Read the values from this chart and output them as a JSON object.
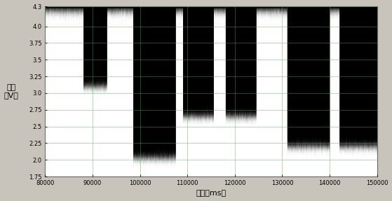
{
  "title": "",
  "xlabel": "时间（ms）",
  "ylabel": "幅值\n（V）",
  "xlim": [
    80000,
    150000
  ],
  "ylim": [
    1.75,
    4.3
  ],
  "xticks": [
    80000,
    90000,
    100000,
    110000,
    120000,
    130000,
    140000,
    150000
  ],
  "yticks": [
    1.75,
    2.0,
    2.25,
    2.5,
    2.75,
    3.0,
    3.25,
    3.5,
    3.75,
    4.0,
    4.3
  ],
  "high_value": 4.26,
  "high_noise": 0.07,
  "low_noise": 0.06,
  "segments": [
    {
      "start": 80000,
      "end": 88000,
      "low": null,
      "high_only": true
    },
    {
      "start": 88000,
      "end": 93000,
      "low": 3.1,
      "high_only": false
    },
    {
      "start": 93000,
      "end": 98500,
      "low": null,
      "high_only": true
    },
    {
      "start": 98500,
      "end": 107500,
      "low": 2.03,
      "high_only": false
    },
    {
      "start": 107500,
      "end": 109000,
      "low": null,
      "high_only": true
    },
    {
      "start": 109000,
      "end": 115500,
      "low": 2.65,
      "high_only": false
    },
    {
      "start": 115500,
      "end": 118000,
      "low": null,
      "high_only": true
    },
    {
      "start": 118000,
      "end": 124500,
      "low": 2.65,
      "high_only": false
    },
    {
      "start": 124500,
      "end": 131000,
      "low": null,
      "high_only": true
    },
    {
      "start": 131000,
      "end": 140000,
      "low": 2.2,
      "high_only": false
    },
    {
      "start": 140000,
      "end": 142000,
      "low": null,
      "high_only": true
    },
    {
      "start": 142000,
      "end": 150000,
      "low": 2.2,
      "high_only": false
    }
  ],
  "signal_color": "#000000",
  "bg_color": "#c8c4bc",
  "plot_bg_color": "#ffffff",
  "grid_color": "#55aa55",
  "grid_alpha": 0.5,
  "xlabel_fontsize": 8,
  "ylabel_fontsize": 8,
  "tick_fontsize": 6
}
